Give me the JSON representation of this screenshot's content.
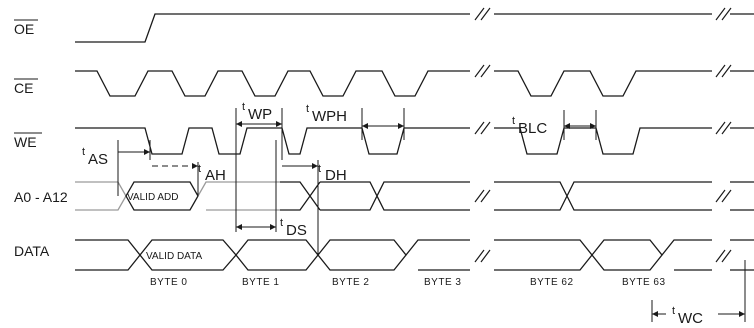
{
  "signals": {
    "oe": "OE",
    "ce": "CE",
    "we": "WE",
    "address": "A0 - A12",
    "data": "DATA"
  },
  "boxes": {
    "valid_address": "VALID ADD",
    "valid_data": "VALID DATA"
  },
  "bytes": [
    "BYTE 0",
    "BYTE 1",
    "BYTE 2",
    "BYTE 3",
    "BYTE 62",
    "BYTE 63"
  ],
  "timing": {
    "t": "t",
    "as": "AS",
    "ah": "AH",
    "wp": "WP",
    "wph": "WPH",
    "dh": "DH",
    "ds": "DS",
    "blc": "BLC",
    "wc": "WC"
  }
}
